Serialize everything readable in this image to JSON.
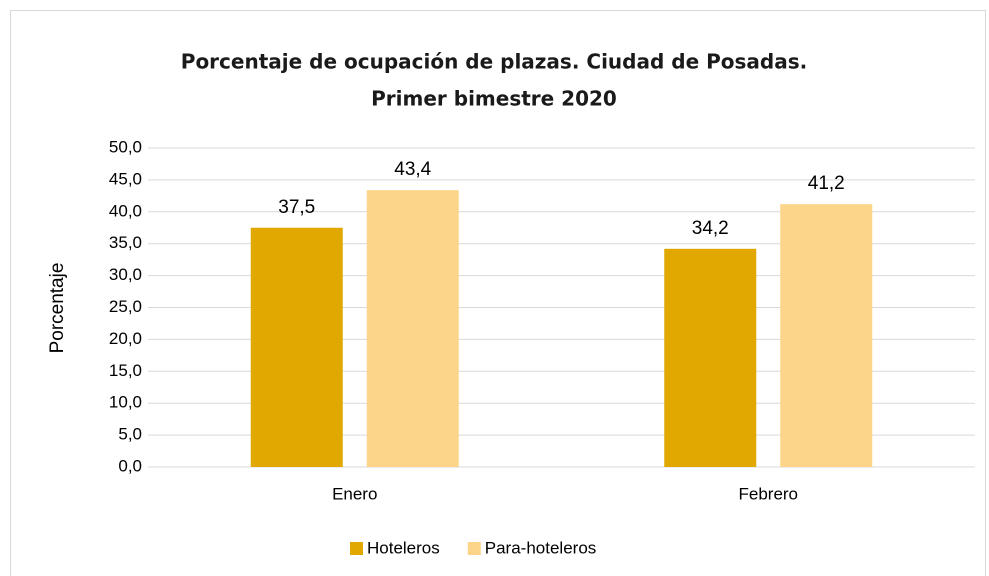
{
  "chart_data": {
    "type": "bar",
    "title": [
      "Porcentaje de ocupación de plazas. Ciudad de Posadas.",
      "Primer bimestre 2020"
    ],
    "ylabel": "Porcentaje",
    "categories": [
      "Enero",
      "Febrero"
    ],
    "series": [
      {
        "name": "Hoteleros",
        "color": "#e0a800",
        "values": [
          37.5,
          34.2
        ],
        "value_labels": [
          "37,5",
          "34,2"
        ]
      },
      {
        "name": "Para-hoteleros",
        "color": "#fdd58a",
        "values": [
          43.4,
          41.2
        ],
        "value_labels": [
          "43,4",
          "41,2"
        ]
      }
    ],
    "ylim": [
      0,
      50
    ],
    "yticks": [
      {
        "value": 0,
        "label": "0,0"
      },
      {
        "value": 5,
        "label": "5,0"
      },
      {
        "value": 10,
        "label": "10,0"
      },
      {
        "value": 15,
        "label": "15,0"
      },
      {
        "value": 20,
        "label": "20,0"
      },
      {
        "value": 25,
        "label": "25,0"
      },
      {
        "value": 30,
        "label": "30,0"
      },
      {
        "value": 35,
        "label": "35,0"
      },
      {
        "value": 40,
        "label": "40,0"
      },
      {
        "value": 45,
        "label": "45,0"
      },
      {
        "value": 50,
        "label": "50,0"
      }
    ],
    "grid": true,
    "legend": "bottom"
  }
}
